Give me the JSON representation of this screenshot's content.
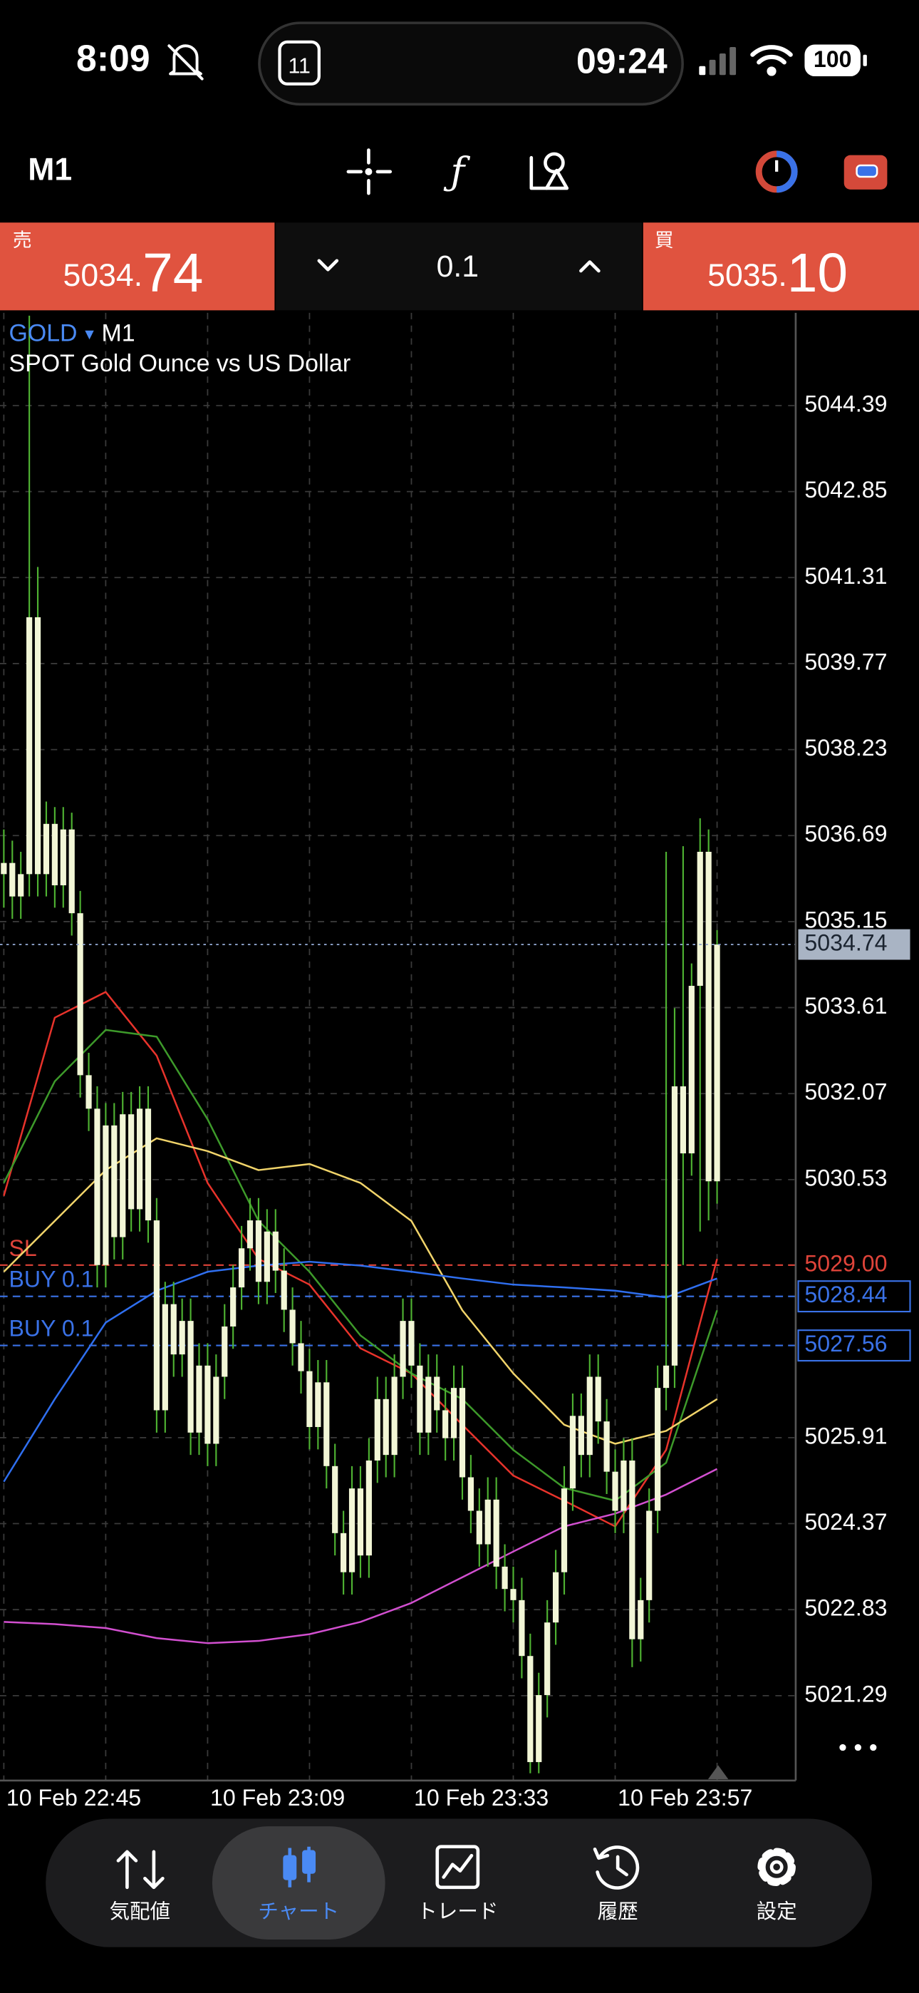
{
  "status_bar": {
    "time": "8:09",
    "calendar_day": "11",
    "island_time": "09:24",
    "battery": "100"
  },
  "toolbar": {
    "timeframe": "M1"
  },
  "trade_panel": {
    "sell": {
      "label": "売",
      "price_head": "5034.",
      "price_tail": "74"
    },
    "volume": "0.1",
    "buy": {
      "label": "買",
      "price_head": "5035.",
      "price_tail": "10"
    }
  },
  "chart_data": {
    "type": "candlestick",
    "symbol": "GOLD",
    "timeframe": "M1",
    "description": "SPOT Gold Ounce vs US Dollar",
    "body_color": "#f2f6d6",
    "wick_color": "#4fb332",
    "grid": true,
    "ohlc": [
      [
        5036.0,
        5036.8,
        5035.4,
        5036.2
      ],
      [
        5036.2,
        5036.6,
        5035.2,
        5035.6
      ],
      [
        5035.6,
        5036.4,
        5035.2,
        5036.0
      ],
      [
        5036.0,
        5046.0,
        5035.6,
        5040.6
      ],
      [
        5040.6,
        5041.5,
        5035.6,
        5036.0
      ],
      [
        5036.0,
        5037.3,
        5035.6,
        5036.9
      ],
      [
        5036.9,
        5037.2,
        5035.4,
        5035.8
      ],
      [
        5035.8,
        5037.2,
        5035.4,
        5036.8
      ],
      [
        5036.8,
        5037.1,
        5034.9,
        5035.3
      ],
      [
        5035.3,
        5035.7,
        5032.0,
        5032.4
      ],
      [
        5032.4,
        5032.8,
        5031.4,
        5031.8
      ],
      [
        5031.8,
        5032.2,
        5028.6,
        5029.0
      ],
      [
        5029.0,
        5031.9,
        5028.6,
        5031.5
      ],
      [
        5031.5,
        5031.9,
        5029.1,
        5029.5
      ],
      [
        5029.5,
        5032.1,
        5029.1,
        5031.7
      ],
      [
        5031.7,
        5032.1,
        5029.6,
        5030.0
      ],
      [
        5030.0,
        5032.2,
        5029.6,
        5031.8
      ],
      [
        5031.8,
        5032.2,
        5029.4,
        5029.8
      ],
      [
        5029.8,
        5030.2,
        5026.0,
        5026.4
      ],
      [
        5026.4,
        5028.7,
        5026.0,
        5028.3
      ],
      [
        5028.3,
        5028.7,
        5027.0,
        5027.4
      ],
      [
        5027.4,
        5028.4,
        5027.0,
        5028.0
      ],
      [
        5028.0,
        5028.4,
        5025.6,
        5026.0
      ],
      [
        5026.0,
        5027.6,
        5025.6,
        5027.2
      ],
      [
        5027.2,
        5027.6,
        5025.4,
        5025.8
      ],
      [
        5025.8,
        5027.4,
        5025.4,
        5027.0
      ],
      [
        5027.0,
        5028.3,
        5026.6,
        5027.9
      ],
      [
        5027.9,
        5029.0,
        5027.5,
        5028.6
      ],
      [
        5028.6,
        5029.7,
        5028.2,
        5029.3
      ],
      [
        5029.3,
        5030.2,
        5028.9,
        5029.8
      ],
      [
        5029.8,
        5030.2,
        5028.3,
        5028.7
      ],
      [
        5028.7,
        5030.0,
        5028.3,
        5029.6
      ],
      [
        5029.6,
        5030.0,
        5028.5,
        5028.9
      ],
      [
        5028.9,
        5029.3,
        5027.8,
        5028.2
      ],
      [
        5028.2,
        5028.6,
        5027.2,
        5027.6
      ],
      [
        5027.6,
        5028.0,
        5026.7,
        5027.1
      ],
      [
        5027.1,
        5027.5,
        5025.7,
        5026.1
      ],
      [
        5026.1,
        5027.3,
        5025.7,
        5026.9
      ],
      [
        5026.9,
        5027.3,
        5025.0,
        5025.4
      ],
      [
        5025.4,
        5025.8,
        5023.8,
        5024.2
      ],
      [
        5024.2,
        5024.6,
        5023.1,
        5023.5
      ],
      [
        5023.5,
        5025.4,
        5023.1,
        5025.0
      ],
      [
        5025.0,
        5025.4,
        5023.4,
        5023.8
      ],
      [
        5023.8,
        5025.9,
        5023.4,
        5025.5
      ],
      [
        5025.5,
        5027.0,
        5025.1,
        5026.6
      ],
      [
        5026.6,
        5027.0,
        5025.2,
        5025.6
      ],
      [
        5025.6,
        5027.4,
        5025.2,
        5027.0
      ],
      [
        5027.0,
        5028.4,
        5026.6,
        5028.0
      ],
      [
        5028.0,
        5028.4,
        5026.8,
        5027.2
      ],
      [
        5027.2,
        5027.6,
        5025.6,
        5026.0
      ],
      [
        5026.0,
        5027.4,
        5025.6,
        5027.0
      ],
      [
        5027.0,
        5027.4,
        5026.0,
        5026.4
      ],
      [
        5026.4,
        5026.8,
        5025.5,
        5025.9
      ],
      [
        5025.9,
        5027.2,
        5025.5,
        5026.8
      ],
      [
        5026.8,
        5027.2,
        5024.8,
        5025.2
      ],
      [
        5025.2,
        5025.6,
        5024.2,
        5024.6
      ],
      [
        5024.6,
        5025.0,
        5023.6,
        5024.0
      ],
      [
        5024.0,
        5025.2,
        5023.6,
        5024.8
      ],
      [
        5024.8,
        5025.2,
        5023.2,
        5023.6
      ],
      [
        5023.6,
        5024.0,
        5022.8,
        5023.2
      ],
      [
        5023.2,
        5023.6,
        5022.6,
        5023.0
      ],
      [
        5023.0,
        5023.4,
        5021.6,
        5022.0
      ],
      [
        5022.0,
        5022.4,
        5019.9,
        5020.1
      ],
      [
        5020.1,
        5021.7,
        5019.9,
        5021.3
      ],
      [
        5021.3,
        5023.0,
        5020.9,
        5022.6
      ],
      [
        5022.6,
        5023.9,
        5022.2,
        5023.5
      ],
      [
        5023.5,
        5025.4,
        5023.1,
        5025.0
      ],
      [
        5025.0,
        5026.7,
        5024.6,
        5026.3
      ],
      [
        5026.3,
        5026.7,
        5025.2,
        5025.6
      ],
      [
        5025.6,
        5027.4,
        5025.2,
        5027.0
      ],
      [
        5027.0,
        5027.4,
        5025.8,
        5026.2
      ],
      [
        5026.2,
        5026.6,
        5024.9,
        5025.3
      ],
      [
        5025.3,
        5025.7,
        5024.2,
        5024.6
      ],
      [
        5024.6,
        5025.9,
        5024.2,
        5025.5
      ],
      [
        5025.5,
        5025.9,
        5021.8,
        5022.3
      ],
      [
        5022.3,
        5023.4,
        5021.9,
        5023.0
      ],
      [
        5023.0,
        5025.0,
        5022.6,
        5024.6
      ],
      [
        5024.6,
        5027.2,
        5024.2,
        5026.8
      ],
      [
        5026.8,
        5036.4,
        5026.4,
        5027.2
      ],
      [
        5027.2,
        5033.6,
        5026.8,
        5032.2
      ],
      [
        5032.2,
        5036.5,
        5029.0,
        5031.0
      ],
      [
        5031.0,
        5034.4,
        5030.6,
        5034.0
      ],
      [
        5034.0,
        5037.0,
        5029.6,
        5036.4
      ],
      [
        5036.4,
        5036.8,
        5029.8,
        5030.5
      ],
      [
        5030.5,
        5035.0,
        5030.1,
        5034.74
      ]
    ],
    "moving_averages": {
      "x": [
        0,
        6,
        12,
        18,
        24,
        30,
        36,
        42,
        48,
        54,
        60,
        66,
        72,
        78,
        84
      ],
      "series": [
        {
          "color": "#e8332b",
          "values": [
            5030.24,
            5033.43,
            5033.89,
            5032.75,
            5030.47,
            5029.11,
            5028.65,
            5027.51,
            5027.06,
            5026.14,
            5025.23,
            5024.78,
            5024.32,
            5025.69,
            5029.11
          ]
        },
        {
          "color": "#3d9a2a",
          "values": [
            5030.47,
            5032.29,
            5033.21,
            5033.09,
            5031.61,
            5029.79,
            5028.88,
            5027.74,
            5027.06,
            5026.6,
            5025.69,
            5025.01,
            5024.78,
            5025.46,
            5028.19
          ]
        },
        {
          "color": "#f1d46a",
          "values": [
            5028.88,
            5029.79,
            5030.7,
            5031.27,
            5031.04,
            5030.7,
            5030.81,
            5030.47,
            5029.79,
            5028.19,
            5027.06,
            5026.14,
            5025.8,
            5026.03,
            5026.6
          ]
        },
        {
          "color": "#2f6ff0",
          "values": [
            5025.12,
            5026.6,
            5027.97,
            5028.54,
            5028.88,
            5028.99,
            5029.06,
            5028.99,
            5028.88,
            5028.76,
            5028.65,
            5028.6,
            5028.54,
            5028.42,
            5028.76
          ]
        },
        {
          "color": "#d24fd0",
          "values": [
            5022.61,
            5022.57,
            5022.5,
            5022.32,
            5022.23,
            5022.27,
            5022.39,
            5022.61,
            5022.95,
            5023.41,
            5023.87,
            5024.32,
            5024.55,
            5024.89,
            5025.35
          ]
        }
      ]
    },
    "bid": 5034.74,
    "levels": [
      {
        "label": "SL",
        "value": 5029,
        "value_label": "5029.00",
        "color": "#e0443a",
        "boxed": false
      },
      {
        "label": "BUY 0.1",
        "value": 5028.44,
        "color": "#3a72e8",
        "boxed": true
      },
      {
        "label": "BUY 0.1",
        "value": 5027.56,
        "color": "#3a72e8",
        "boxed": true
      }
    ],
    "xlim": [
      -0.45,
      93.26
    ],
    "xticks": [
      {
        "value": 0,
        "label": "10 Feb 22:45"
      },
      {
        "value": 24,
        "label": "10 Feb 23:09"
      },
      {
        "value": 48,
        "label": "10 Feb 23:33"
      },
      {
        "value": 72,
        "label": "10 Feb 23:57"
      }
    ],
    "xminor": [
      12,
      36,
      60,
      84
    ],
    "ylim": [
      5019.77,
      5046.05
    ],
    "yticks": [
      5044.39,
      5042.85,
      5041.31,
      5039.77,
      5038.23,
      5036.69,
      5035.15,
      5033.61,
      5032.07,
      5030.53,
      5025.91,
      5024.37,
      5022.83,
      5021.29
    ]
  },
  "nav": {
    "selected": 1,
    "items": [
      {
        "label": "気配値"
      },
      {
        "label": "チャート"
      },
      {
        "label": "トレード"
      },
      {
        "label": "履歴"
      },
      {
        "label": "設定"
      }
    ]
  }
}
